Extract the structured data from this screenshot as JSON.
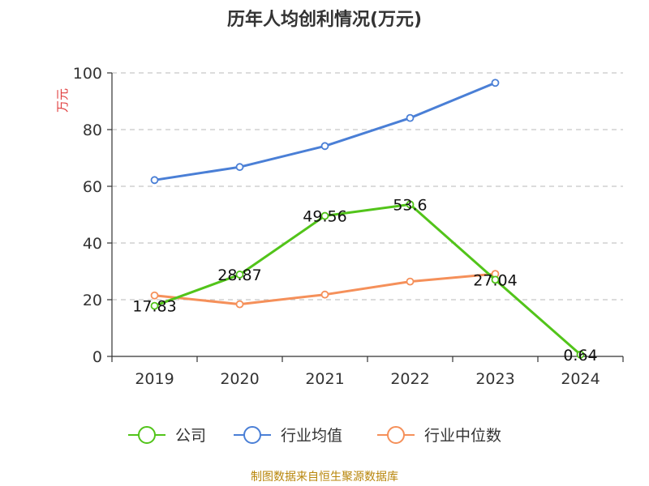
{
  "chart_data": {
    "type": "line",
    "title": "历年人均创利情况(万元)",
    "ylabel": "万元",
    "xlabel": "",
    "categories": [
      "2019",
      "2020",
      "2021",
      "2022",
      "2023",
      "2024"
    ],
    "ylim": [
      0,
      100
    ],
    "yticks": [
      0,
      20,
      40,
      60,
      80,
      100
    ],
    "grid": true,
    "legend_position": "bottom",
    "series": [
      {
        "name": "公司",
        "color": "#52c41a",
        "values": [
          17.83,
          28.87,
          49.56,
          53.6,
          27.04,
          0.64
        ],
        "labels": [
          "17.83",
          "28.87",
          "49.56",
          "53.6",
          "27.04",
          "0.64"
        ]
      },
      {
        "name": "行业均值",
        "color": "#4a7fd6",
        "values": [
          62.2,
          66.8,
          74.2,
          84.1,
          96.5,
          null
        ]
      },
      {
        "name": "行业中位数",
        "color": "#f5905a",
        "values": [
          21.5,
          18.4,
          21.8,
          26.4,
          29.1,
          null
        ]
      }
    ]
  },
  "source": "制图数据来自恒生聚源数据库"
}
